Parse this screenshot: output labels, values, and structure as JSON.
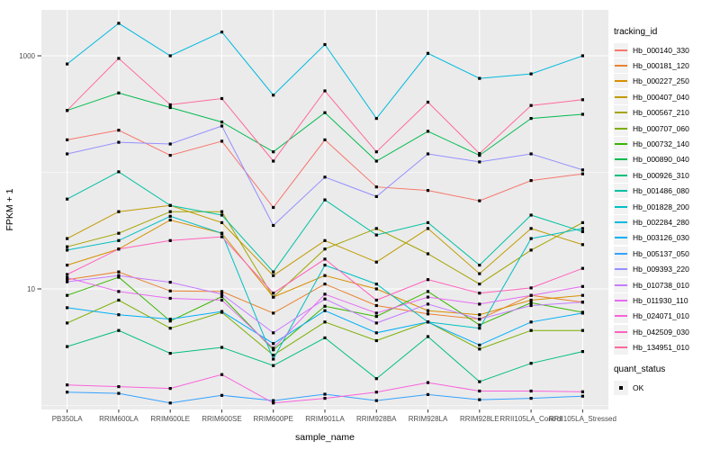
{
  "panel": {
    "background": "#EBEBEB",
    "gridline_color": "#FFFFFF",
    "tick_color": "#333333",
    "axis_text_color": "#4D4D4D",
    "point_color": "#000000"
  },
  "legend": {
    "color_title": "tracking_id",
    "shape_title": "quant_status",
    "shape_items": [
      {
        "label": "OK"
      }
    ],
    "key_background": "#F2F2F2"
  },
  "chart_data": {
    "type": "line",
    "title": "",
    "xlabel": "sample_name",
    "ylabel": "FPKM + 1",
    "y_scale": "log10",
    "y_ticks": [
      1000,
      10
    ],
    "y_minor_gridlines": [
      100,
      1
    ],
    "ylim_log": [
      -0.03,
      3.4
    ],
    "grid": true,
    "legend_position": "right",
    "point_shape": "filled-square",
    "categories": [
      "PB350LA",
      "RRIM600LA",
      "RRIM600LE",
      "RRIM600SE",
      "RRIM600PE",
      "RRIM901LA",
      "RRIM928BA",
      "RRIM928LA",
      "RRIM928LE",
      "RRII105LA_Control",
      "RRII105LA_Stressed"
    ],
    "series": [
      {
        "name": "Hb_000140_330",
        "color": "#F8766D",
        "values": [
          190,
          230,
          140,
          185,
          50,
          190,
          75,
          70,
          57,
          85,
          97
        ]
      },
      {
        "name": "Hb_000181_120",
        "color": "#EA8331",
        "values": [
          12,
          14,
          9.6,
          9.5,
          6.2,
          11,
          7.2,
          6.1,
          5.5,
          8.8,
          7.7
        ]
      },
      {
        "name": "Hb_000227_250",
        "color": "#D89000",
        "values": [
          16,
          22,
          39,
          30,
          8.5,
          13,
          10,
          6.5,
          6,
          8,
          8.8
        ]
      },
      {
        "name": "Hb_000407_040",
        "color": "#C09B00",
        "values": [
          27,
          46,
          52,
          37,
          13,
          26,
          17,
          33,
          13.5,
          33,
          24
        ]
      },
      {
        "name": "Hb_000567_210",
        "color": "#A3A500",
        "values": [
          23,
          30,
          46,
          46,
          8.5,
          22,
          33,
          20,
          11,
          21.5,
          37
        ]
      },
      {
        "name": "Hb_000707_060",
        "color": "#7CAE00",
        "values": [
          5.1,
          8,
          4.6,
          6.3,
          2.7,
          5.2,
          3.6,
          5.2,
          3.05,
          4.4,
          4.4
        ]
      },
      {
        "name": "Hb_000732_140",
        "color": "#39B600",
        "values": [
          8.8,
          12.6,
          5.3,
          8.6,
          3.0,
          7.1,
          5.8,
          9.5,
          4.9,
          7.6,
          6.3
        ]
      },
      {
        "name": "Hb_000890_040",
        "color": "#00BB4E",
        "values": [
          340,
          480,
          360,
          270,
          150,
          325,
          125,
          225,
          140,
          290,
          315
        ]
      },
      {
        "name": "Hb_000926_310",
        "color": "#00BF7D",
        "values": [
          3.2,
          4.4,
          2.8,
          3.15,
          2.2,
          3.8,
          1.7,
          3.9,
          1.6,
          2.3,
          2.9
        ]
      },
      {
        "name": "Hb_001486_080",
        "color": "#00C1A3",
        "values": [
          59,
          101,
          52,
          43,
          14,
          58,
          29,
          37,
          16,
          43,
          31
        ]
      },
      {
        "name": "Hb_001828_200",
        "color": "#00BFC4",
        "values": [
          21.5,
          26,
          42,
          30,
          2.5,
          16,
          11,
          5.2,
          4.6,
          27,
          33
        ]
      },
      {
        "name": "Hb_002284_280",
        "color": "#00BADE",
        "values": [
          850,
          1900,
          1000,
          1600,
          460,
          1250,
          290,
          1050,
          640,
          700,
          1000
        ]
      },
      {
        "name": "Hb_003126_030",
        "color": "#00B0F6",
        "values": [
          6.9,
          6.0,
          5.5,
          6.4,
          3.4,
          6.5,
          4.2,
          5.2,
          3.3,
          5.2,
          6.2
        ]
      },
      {
        "name": "Hb_005137_050",
        "color": "#35A2FF",
        "values": [
          1.3,
          1.27,
          1.05,
          1.22,
          1.1,
          1.25,
          1.1,
          1.24,
          1.12,
          1.15,
          1.2
        ]
      },
      {
        "name": "Hb_009393_220",
        "color": "#9590FF",
        "values": [
          144,
          181,
          175,
          250,
          35,
          91,
          62,
          144,
          123,
          144,
          105
        ]
      },
      {
        "name": "Hb_010738_010",
        "color": "#C77CFF",
        "values": [
          11.5,
          13,
          11.4,
          9,
          4.2,
          8.2,
          5.1,
          7.4,
          5.5,
          7.2,
          7.7
        ]
      },
      {
        "name": "Hb_011930_110",
        "color": "#E76BF3",
        "values": [
          12.5,
          9.5,
          8.3,
          8.0,
          3.1,
          9.0,
          6.2,
          8.5,
          7.4,
          8.8,
          10.5
        ]
      },
      {
        "name": "Hb_024071_010",
        "color": "#FA62DB",
        "values": [
          1.5,
          1.45,
          1.4,
          1.84,
          1.05,
          1.15,
          1.3,
          1.57,
          1.33,
          1.33,
          1.31
        ]
      },
      {
        "name": "Hb_042509_030",
        "color": "#FF62BC",
        "values": [
          13.3,
          22,
          26,
          28,
          9.2,
          18,
          8.0,
          12,
          9.2,
          10.2,
          15
        ]
      },
      {
        "name": "Hb_134951_010",
        "color": "#FF6A98",
        "values": [
          340,
          950,
          380,
          430,
          125,
          500,
          150,
          400,
          145,
          375,
          420
        ]
      }
    ]
  }
}
